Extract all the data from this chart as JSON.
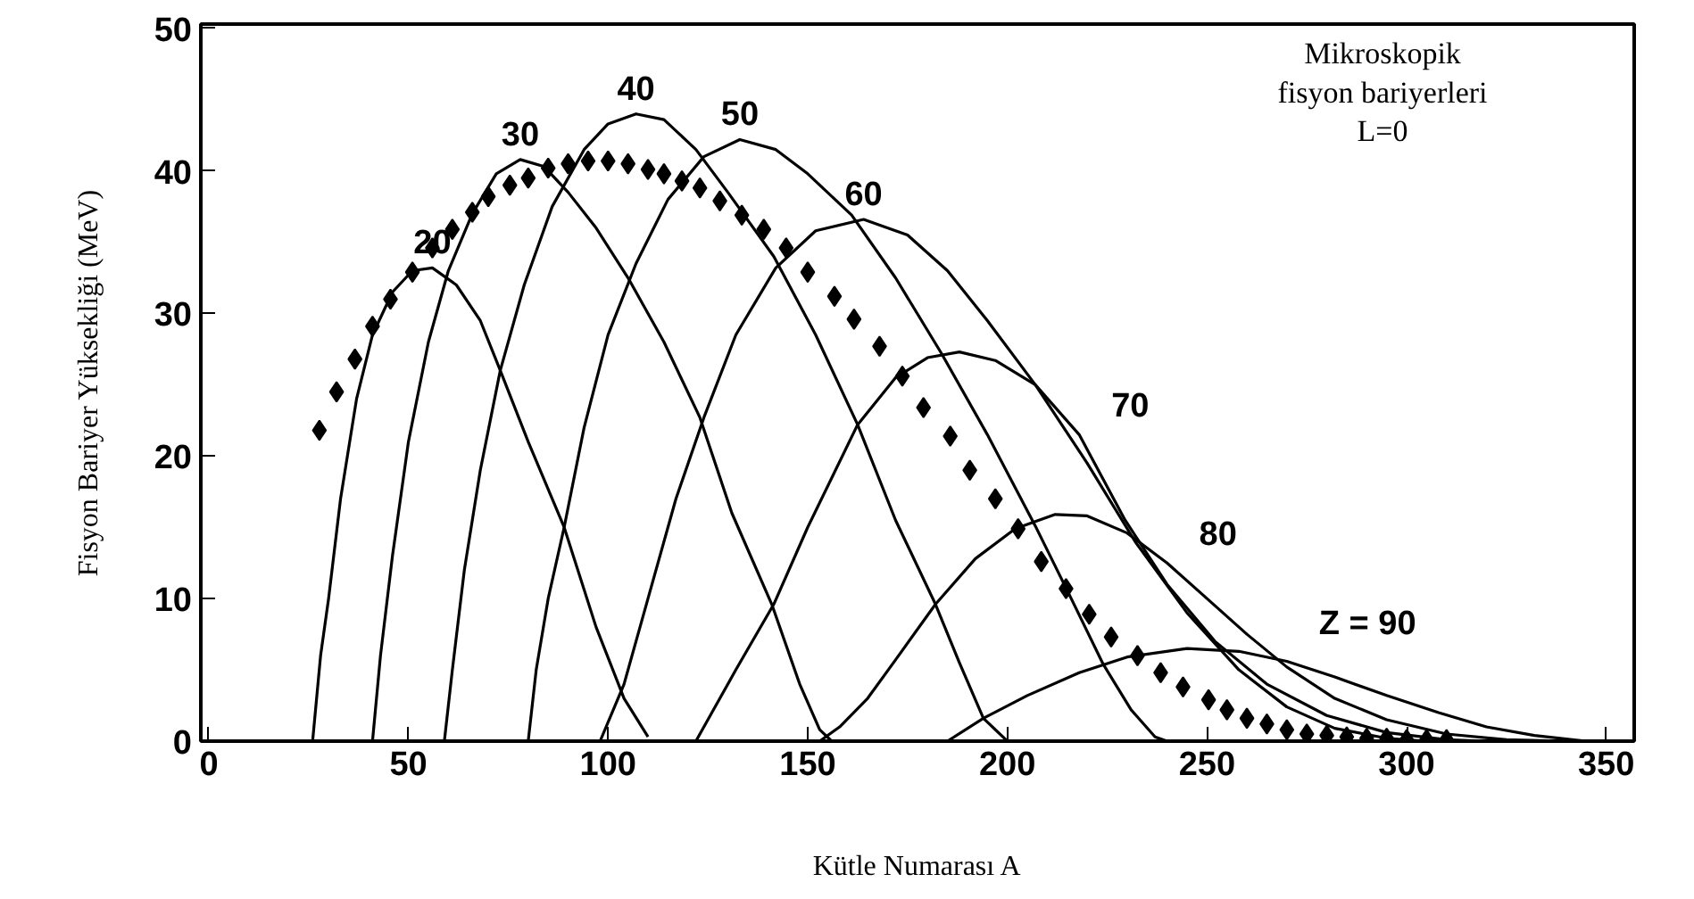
{
  "chart_data": {
    "type": "line",
    "xlabel": "Kütle Numarası A",
    "ylabel": "Fisyon Bariyer Yüksekliği (MeV)",
    "xlim": [
      -2,
      357
    ],
    "ylim": [
      0,
      50.3
    ],
    "xticks": [
      0,
      50,
      100,
      150,
      200,
      250,
      300,
      350
    ],
    "yticks": [
      0,
      10,
      20,
      30,
      40,
      50
    ],
    "grid": false,
    "line_style": "solid",
    "series": [
      {
        "name": "20",
        "color": "#000000",
        "marker": "none",
        "x": [
          26,
          28,
          30,
          33,
          37,
          41,
          46,
          51,
          56,
          62,
          68,
          73,
          80,
          89,
          97,
          104,
          110
        ],
        "values": [
          0,
          6,
          10,
          17,
          24,
          28.5,
          31.5,
          33,
          33.2,
          32,
          29.5,
          26,
          21,
          15,
          8,
          3,
          0.3
        ]
      },
      {
        "name": "30",
        "color": "#000000",
        "marker": "none",
        "x": [
          41,
          43,
          46,
          50,
          55,
          60,
          66,
          72,
          78,
          84,
          90,
          97,
          105,
          114,
          123,
          131,
          141,
          148,
          153,
          156
        ],
        "values": [
          0,
          6,
          13,
          21,
          28,
          33,
          37,
          39.8,
          40.8,
          40.3,
          38.5,
          36,
          32.5,
          28,
          22.7,
          16,
          9.6,
          4,
          0.8,
          0
        ]
      },
      {
        "name": "40",
        "color": "#000000",
        "marker": "none",
        "x": [
          59,
          61,
          64,
          68,
          73,
          79,
          86,
          94,
          100,
          107,
          114,
          122,
          130,
          141.5,
          152,
          162.5,
          172,
          182,
          188,
          194,
          200
        ],
        "values": [
          0,
          5,
          12,
          19,
          26,
          32,
          37.5,
          41.5,
          43.3,
          44,
          43.6,
          41.5,
          38.5,
          34,
          28.5,
          22.2,
          15.5,
          9.6,
          5.5,
          1.6,
          0
        ]
      },
      {
        "name": "50",
        "color": "#000000",
        "marker": "none",
        "x": [
          80,
          82,
          85,
          89,
          94,
          100,
          107,
          115,
          124,
          133,
          142,
          150,
          161,
          172,
          183.5,
          195,
          207,
          216,
          224,
          231,
          237,
          240
        ],
        "values": [
          0,
          5,
          10,
          15,
          22,
          28.5,
          33.5,
          38,
          41,
          42.2,
          41.5,
          39.8,
          36.9,
          32.5,
          27.2,
          21.5,
          15.1,
          10,
          5.4,
          2.2,
          0.3,
          0
        ]
      },
      {
        "name": "60",
        "color": "#000000",
        "marker": "none",
        "x": [
          98,
          101,
          104,
          110,
          117,
          124,
          132,
          142,
          152,
          164,
          175,
          185,
          195,
          207,
          220,
          232,
          245,
          258,
          270,
          282,
          295,
          305
        ],
        "values": [
          0,
          2,
          4,
          10,
          17,
          22.7,
          28.5,
          33.2,
          35.8,
          36.6,
          35.5,
          33,
          29.5,
          25,
          19.5,
          14,
          9,
          5,
          2.4,
          0.9,
          0.2,
          0
        ]
      },
      {
        "name": "70",
        "color": "#000000",
        "marker": "none",
        "x": [
          122,
          126,
          132,
          141.5,
          150,
          162.5,
          172,
          180,
          188,
          197,
          207,
          218,
          229.5,
          240,
          252,
          265,
          280,
          295,
          310,
          320
        ],
        "values": [
          0,
          2,
          5,
          9.6,
          15,
          22.2,
          25.5,
          26.9,
          27.3,
          26.7,
          25,
          21.5,
          15.5,
          11,
          7,
          4,
          1.8,
          0.6,
          0.1,
          0
        ]
      },
      {
        "name": "80",
        "color": "#000000",
        "marker": "none",
        "x": [
          153,
          158,
          165,
          172,
          182,
          192,
          202,
          212,
          220,
          230,
          240,
          250,
          260,
          270,
          282,
          295,
          310,
          325,
          340
        ],
        "values": [
          0,
          1,
          3,
          5.7,
          9.6,
          12.8,
          14.9,
          15.9,
          15.8,
          14.6,
          12.5,
          10,
          7.5,
          5.2,
          3,
          1.5,
          0.5,
          0.1,
          0
        ]
      },
      {
        "name": "Z = 90",
        "color": "#000000",
        "marker": "none",
        "x": [
          185,
          194,
          205,
          218,
          230,
          245,
          258,
          270,
          282,
          295,
          308,
          320,
          332,
          345
        ],
        "values": [
          0,
          1.6,
          3.2,
          4.8,
          5.9,
          6.5,
          6.3,
          5.6,
          4.5,
          3.2,
          2,
          1,
          0.4,
          0
        ]
      },
      {
        "type": "scatter",
        "color": "#000000",
        "marker": "diamond",
        "x": [
          27.7,
          32,
          36.6,
          41,
          45.5,
          51,
          56,
          61,
          66,
          70,
          75.4,
          80,
          85,
          90,
          95,
          100,
          105,
          110,
          114,
          118.5,
          123,
          128,
          133.5,
          139,
          144.6,
          150,
          156.7,
          161.6,
          168,
          173.7,
          179,
          185.7,
          190.6,
          197,
          202.7,
          208.5,
          214.7,
          220.5,
          226,
          232.6,
          238.4,
          244,
          250.4,
          255,
          260,
          265,
          270,
          275,
          280,
          285,
          290,
          295,
          300,
          305,
          310
        ],
        "values": [
          21.8,
          24.5,
          26.8,
          29.1,
          31,
          32.9,
          34.6,
          35.9,
          37.1,
          38.2,
          39,
          39.5,
          40.2,
          40.5,
          40.7,
          40.7,
          40.5,
          40.1,
          39.8,
          39.3,
          38.8,
          37.9,
          36.9,
          35.9,
          34.6,
          32.9,
          31.2,
          29.6,
          27.7,
          25.6,
          23.4,
          21.4,
          19,
          17,
          14.9,
          12.6,
          10.7,
          8.9,
          7.3,
          6,
          4.8,
          3.8,
          2.9,
          2.2,
          1.6,
          1.2,
          0.8,
          0.5,
          0.4,
          0.3,
          0.2,
          0.2,
          0.1,
          0.1,
          0.1
        ]
      }
    ],
    "annotations": [
      "Mikroskopik\nfisyon bariyerleri\nL=0"
    ]
  }
}
